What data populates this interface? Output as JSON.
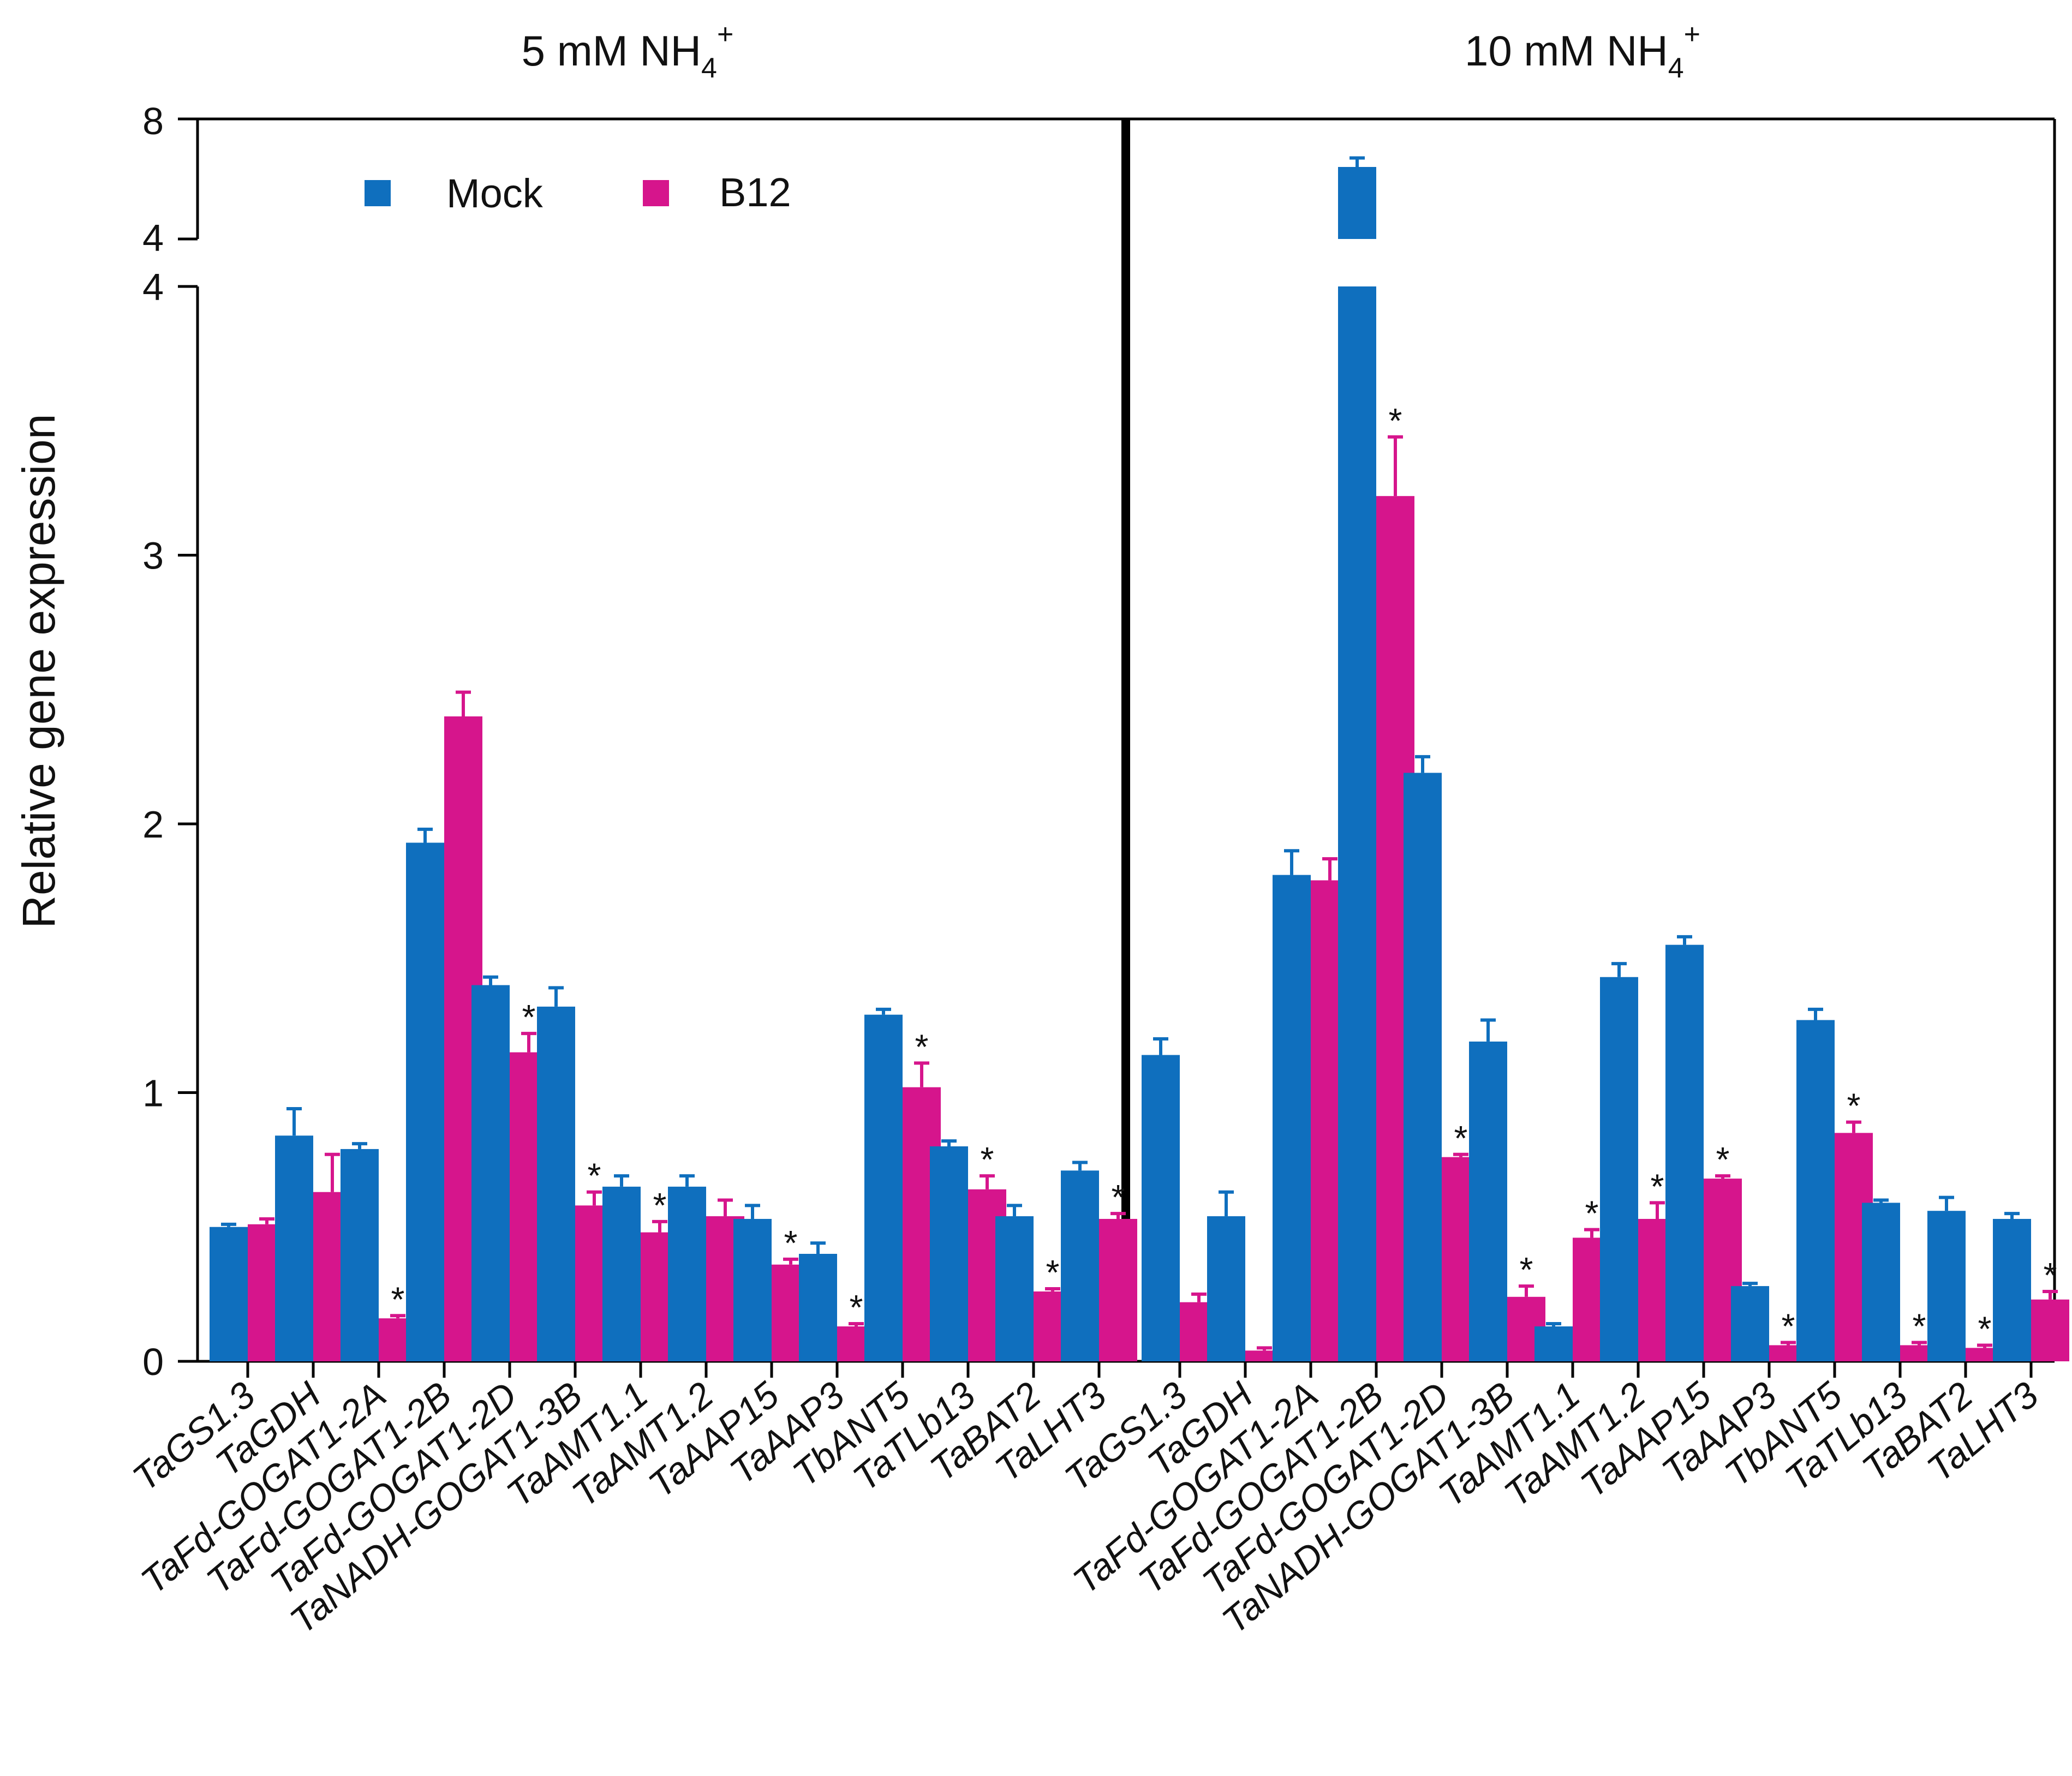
{
  "chart_data": {
    "type": "bar",
    "ylabel": "Relative gene expression",
    "ylim": [
      0,
      8
    ],
    "axis_break": {
      "lower": [
        0,
        4
      ],
      "upper_ticks": [
        "4",
        "8"
      ]
    },
    "yticks": [
      "0",
      "1",
      "2",
      "3",
      "4"
    ],
    "grid": false,
    "legend": {
      "position": "top-left",
      "entries": [
        "Mock",
        "B12"
      ]
    },
    "colors": {
      "Mock": "#0f6fbe",
      "B12": "#d6158c"
    },
    "significance_marker": "*",
    "categories": [
      "TaGS1.3",
      "TaGDH",
      "TaFd-GOGAT1-2A",
      "TaFd-GOGAT1-2B",
      "TaFd-GOGAT1-2D",
      "TaNADH-GOGAT1-3B",
      "TaAMT1.1",
      "TaAMT1.2",
      "TaAAP15",
      "TaAAP3",
      "TbANT5",
      "TaTLb13",
      "TaBAT2",
      "TaLHT3"
    ],
    "panels": [
      {
        "title": "5 mM NH",
        "title_sub": "4",
        "title_sup": "+",
        "series": [
          {
            "name": "Mock",
            "values": [
              0.5,
              0.84,
              0.79,
              1.93,
              1.4,
              1.32,
              0.65,
              0.65,
              0.53,
              0.4,
              1.29,
              0.8,
              0.54,
              0.71
            ],
            "errors": [
              0.01,
              0.1,
              0.02,
              0.05,
              0.03,
              0.07,
              0.04,
              0.04,
              0.05,
              0.04,
              0.02,
              0.02,
              0.04,
              0.03
            ],
            "sig": [
              false,
              false,
              false,
              false,
              false,
              false,
              false,
              false,
              false,
              false,
              false,
              false,
              false,
              false
            ]
          },
          {
            "name": "B12",
            "values": [
              0.51,
              0.63,
              0.16,
              2.4,
              1.15,
              0.58,
              0.48,
              0.54,
              0.36,
              0.13,
              1.02,
              0.64,
              0.26,
              0.53
            ],
            "errors": [
              0.02,
              0.14,
              0.01,
              0.09,
              0.07,
              0.05,
              0.04,
              0.06,
              0.02,
              0.01,
              0.09,
              0.05,
              0.01,
              0.02
            ],
            "sig": [
              false,
              false,
              true,
              false,
              true,
              true,
              true,
              false,
              true,
              true,
              true,
              true,
              true,
              true
            ]
          }
        ]
      },
      {
        "title": "10 mM NH",
        "title_sub": "4",
        "title_sup": "+",
        "series": [
          {
            "name": "Mock",
            "values": [
              1.14,
              0.54,
              1.81,
              6.4,
              2.19,
              1.19,
              0.13,
              1.43,
              1.55,
              0.28,
              1.27,
              0.59,
              0.56,
              0.53
            ],
            "errors": [
              0.06,
              0.09,
              0.09,
              0.3,
              0.06,
              0.08,
              0.01,
              0.05,
              0.03,
              0.01,
              0.04,
              0.01,
              0.05,
              0.02
            ],
            "sig": [
              false,
              false,
              false,
              false,
              false,
              false,
              false,
              false,
              false,
              false,
              false,
              false,
              false,
              false
            ]
          },
          {
            "name": "B12",
            "values": [
              0.22,
              0.04,
              1.79,
              3.22,
              0.76,
              0.24,
              0.46,
              0.53,
              0.68,
              0.06,
              0.85,
              0.06,
              0.05,
              0.23
            ],
            "errors": [
              0.03,
              0.01,
              0.08,
              0.22,
              0.01,
              0.04,
              0.03,
              0.06,
              0.01,
              0.01,
              0.04,
              0.01,
              0.01,
              0.03
            ],
            "sig": [
              false,
              false,
              false,
              true,
              true,
              true,
              true,
              true,
              true,
              true,
              true,
              true,
              true,
              true
            ]
          }
        ]
      }
    ]
  }
}
